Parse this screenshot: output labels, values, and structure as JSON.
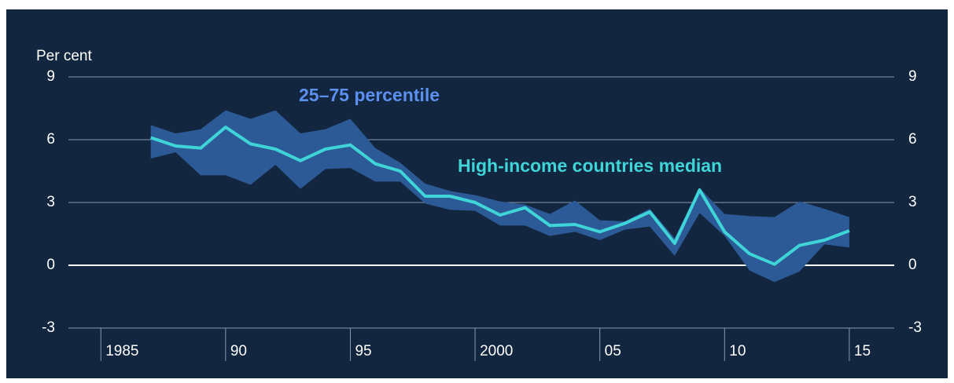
{
  "chart_data": {
    "type": "line",
    "y_label": "Per cent",
    "x": [
      1987,
      1988,
      1989,
      1990,
      1991,
      1992,
      1993,
      1994,
      1995,
      1996,
      1997,
      1998,
      1999,
      2000,
      2001,
      2002,
      2003,
      2004,
      2005,
      2006,
      2007,
      2008,
      2009,
      2010,
      2011,
      2012,
      2013,
      2014,
      2015
    ],
    "series": [
      {
        "name": "25–75 percentile",
        "color": "#2c5a96",
        "label_color": "#5b8ff0",
        "upper": [
          6.7,
          6.3,
          6.5,
          7.4,
          7.0,
          7.4,
          6.3,
          6.5,
          7.0,
          5.6,
          4.9,
          3.9,
          3.55,
          3.35,
          3.05,
          2.9,
          2.45,
          3.1,
          2.15,
          2.1,
          2.7,
          1.3,
          3.7,
          2.45,
          2.35,
          2.3,
          3.05,
          2.7,
          2.3
        ],
        "lower": [
          5.1,
          5.4,
          4.3,
          4.3,
          3.85,
          4.8,
          3.65,
          4.6,
          4.65,
          4.0,
          4.0,
          2.95,
          2.65,
          2.6,
          1.9,
          1.9,
          1.4,
          1.6,
          1.2,
          1.7,
          1.85,
          0.45,
          2.5,
          1.4,
          -0.25,
          -0.8,
          -0.3,
          1.0,
          0.85
        ]
      },
      {
        "name": "High-income countries median",
        "color": "#3fd5d8",
        "values": [
          6.1,
          5.7,
          5.6,
          6.6,
          5.8,
          5.55,
          5.0,
          5.55,
          5.75,
          4.85,
          4.5,
          3.3,
          3.3,
          3.0,
          2.4,
          2.75,
          1.9,
          1.95,
          1.6,
          2.0,
          2.55,
          1.05,
          3.6,
          1.6,
          0.55,
          0.05,
          0.95,
          1.2,
          1.65
        ]
      }
    ],
    "xlim": [
      1983.7,
      2016.8
    ],
    "xticks": [
      1985,
      {
        "value": 1990,
        "label": "90"
      },
      {
        "value": 1995,
        "label": "95"
      },
      2000,
      {
        "value": 2005,
        "label": "05"
      },
      {
        "value": 2010,
        "label": "10"
      },
      {
        "value": 2015,
        "label": "15"
      }
    ],
    "ylim": [
      -3,
      9
    ],
    "yticks": [
      -3,
      0,
      3,
      6,
      9
    ],
    "grid": true
  }
}
